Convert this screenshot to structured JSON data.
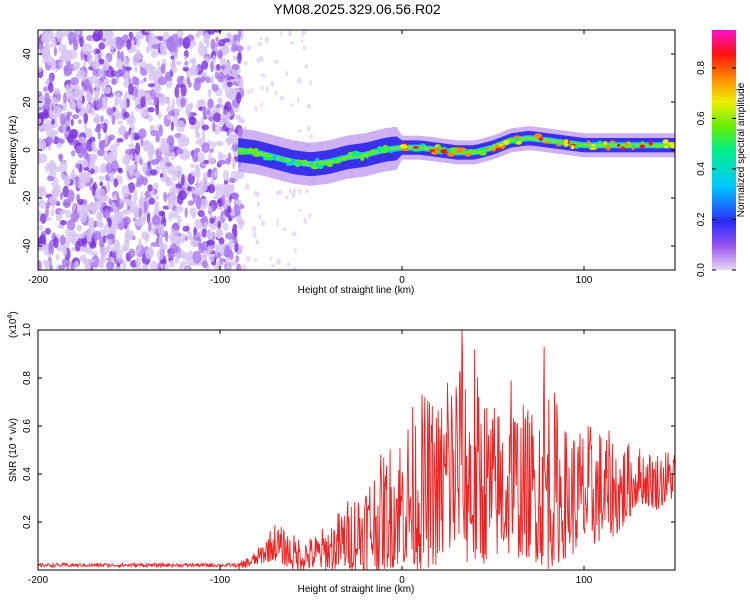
{
  "title": "YM08.2025.329.06.56.R02",
  "chart_data": [
    {
      "type": "heatmap",
      "xlabel": "Height of straight line (km)",
      "ylabel": "Frequency (Hz)",
      "xlim": [
        -200,
        150
      ],
      "ylim": [
        -50,
        50
      ],
      "xticks": [
        -200,
        -100,
        0,
        100
      ],
      "yticks": [
        -40,
        -20,
        0,
        20,
        40
      ],
      "ridge": {
        "x": [
          -90,
          -80,
          -70,
          -60,
          -50,
          -40,
          -30,
          -20,
          -10,
          0,
          10,
          20,
          30,
          40,
          50,
          60,
          70,
          80,
          90,
          100,
          110,
          120,
          130,
          140,
          150
        ],
        "freq_hz": [
          0,
          -1,
          -3,
          -5,
          -6,
          -5,
          -3,
          -2,
          0,
          1,
          1,
          0,
          -1,
          -1,
          1,
          4,
          5,
          4,
          3,
          2,
          2,
          2,
          2,
          2,
          2
        ]
      },
      "noise_region_x": [
        -200,
        -88
      ],
      "colorbar": {
        "label": "Normalized spectral amplitude",
        "range": [
          0,
          0.95
        ],
        "ticks": [
          "0.0",
          "0.2",
          "0.4",
          "0.6",
          "0.8"
        ],
        "tick_values": [
          0,
          0.2,
          0.4,
          0.6,
          0.8
        ]
      }
    },
    {
      "type": "line",
      "xlabel": "Height of straight line (km)",
      "ylabel": "SNR (10 * v/v)",
      "y_exponent_label": "(x10",
      "y_exponent": "4",
      "y_exponent_close": ")",
      "xlim": [
        -200,
        150
      ],
      "ylim": [
        0,
        1.0
      ],
      "xticks": [
        -200,
        -100,
        0,
        100
      ],
      "yticks": [
        "0.2",
        "0.4",
        "0.6",
        "0.8",
        "1.0"
      ],
      "ytick_values": [
        0.2,
        0.4,
        0.6,
        0.8,
        1.0
      ],
      "series": [
        {
          "name": "SNR",
          "color": "#ee2222",
          "envelope": {
            "x": [
              -200,
              -150,
              -90,
              -80,
              -70,
              -60,
              -50,
              -40,
              -30,
              -20,
              -10,
              0,
              10,
              20,
              30,
              40,
              50,
              60,
              70,
              80,
              90,
              100,
              110,
              120,
              130,
              140,
              150
            ],
            "max": [
              0.03,
              0.03,
              0.03,
              0.08,
              0.2,
              0.15,
              0.14,
              0.2,
              0.3,
              0.4,
              0.5,
              0.62,
              0.75,
              0.72,
              0.95,
              0.85,
              0.7,
              0.75,
              0.68,
              0.85,
              0.6,
              0.62,
              0.6,
              0.55,
              0.52,
              0.5,
              0.52
            ],
            "min": [
              0.0,
              0.0,
              0.0,
              0.02,
              0.04,
              0.0,
              0.0,
              0.0,
              0.0,
              0.0,
              0.0,
              0.02,
              0.0,
              0.02,
              0.05,
              0.0,
              0.05,
              0.05,
              0.05,
              0.0,
              0.05,
              0.08,
              0.12,
              0.15,
              0.28,
              0.25,
              0.3
            ]
          },
          "peaks": [
            {
              "x": 33,
              "y": 1.0
            },
            {
              "x": 40,
              "y": 0.92
            },
            {
              "x": 78,
              "y": 0.93
            },
            {
              "x": 25,
              "y": 0.78
            },
            {
              "x": 60,
              "y": 0.79
            }
          ]
        }
      ]
    }
  ]
}
